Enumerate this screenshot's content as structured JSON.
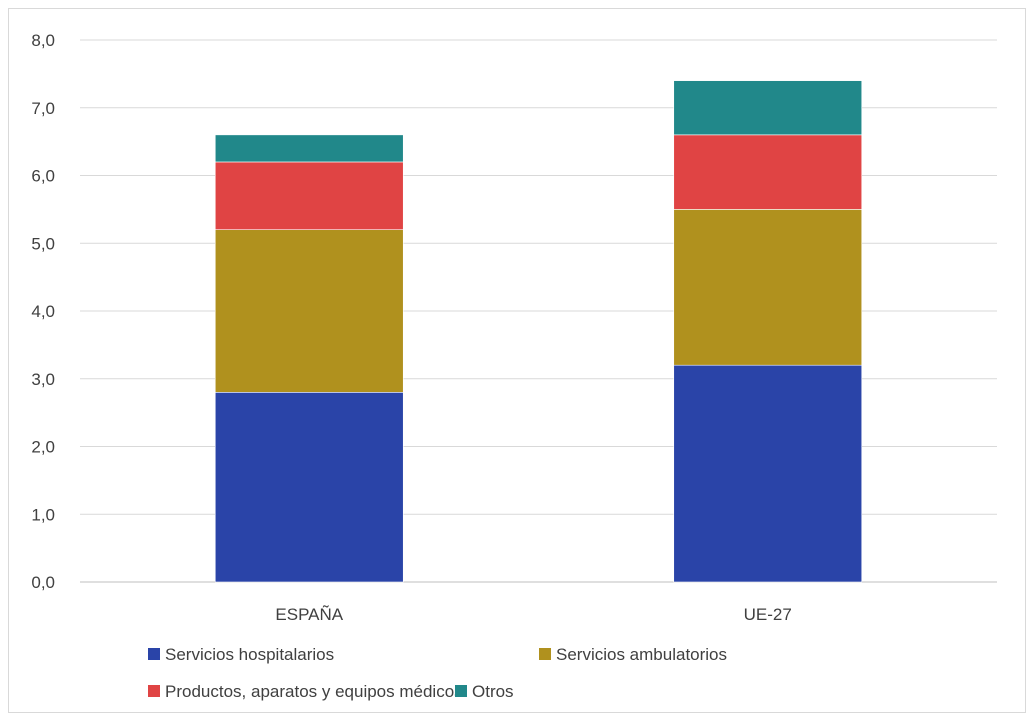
{
  "chart_data": {
    "type": "bar",
    "stacked": true,
    "title": "",
    "xlabel": "",
    "ylabel": "",
    "categories": [
      "ESPAÑA",
      "UE-27"
    ],
    "ylim": [
      0,
      8
    ],
    "ytick_step": 1,
    "ytick_labels": [
      "0,0",
      "1,0",
      "2,0",
      "3,0",
      "4,0",
      "5,0",
      "6,0",
      "7,0",
      "8,0"
    ],
    "grid": true,
    "legend_position": "bottom",
    "series": [
      {
        "name": "Servicios hospitalarios",
        "values": [
          2.8,
          3.2
        ],
        "color": "#2a44a8"
      },
      {
        "name": "Servicios ambulatorios",
        "values": [
          2.4,
          2.3
        ],
        "color": "#b0911e"
      },
      {
        "name": "Productos, aparatos y equipos médicos",
        "values": [
          1.0,
          1.1
        ],
        "color": "#e04444"
      },
      {
        "name": "Otros",
        "values": [
          0.4,
          0.8
        ],
        "color": "#21888a"
      }
    ]
  }
}
